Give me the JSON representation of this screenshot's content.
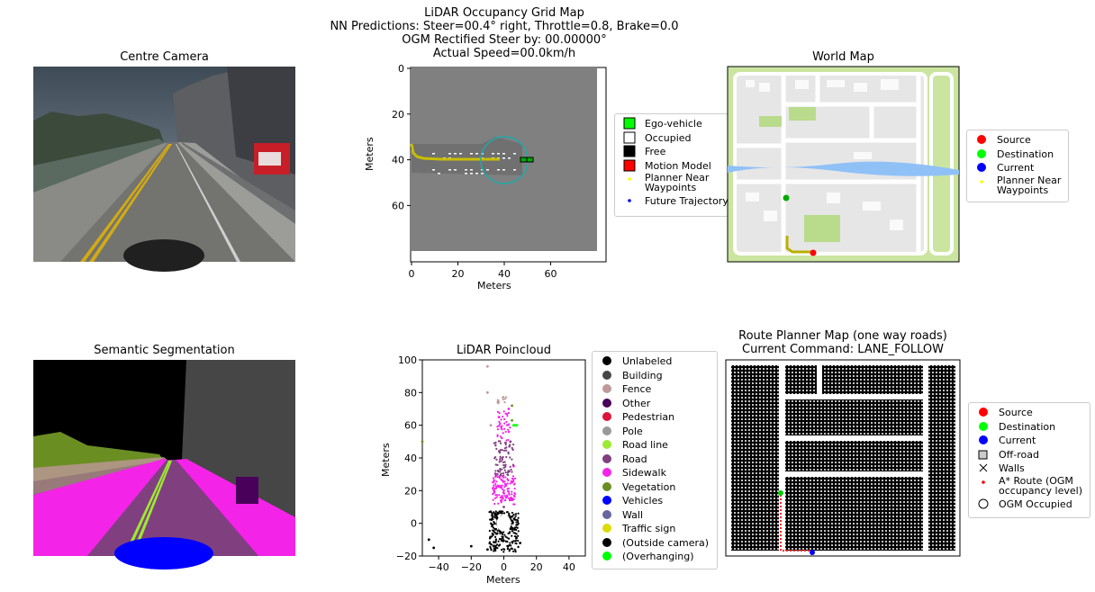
{
  "suptitle": {
    "line1": "LiDAR Occupancy Grid Map",
    "line2": "NN Predictions: Steer=00.4° right, Throttle=0.8, Brake=0.0",
    "line3": "OGM Rectified Steer by: 00.00000°",
    "line4": "Actual Speed=00.0km/h"
  },
  "camera": {
    "title": "Centre Camera"
  },
  "ogm": {
    "xlabel": "Meters",
    "ylabel": "Meters",
    "xticks": [
      "0",
      "20",
      "40",
      "60"
    ],
    "yticks": [
      "0",
      "20",
      "40",
      "60"
    ],
    "legend": [
      {
        "label": "Ego-vehicle",
        "marker": "square",
        "color": "#00ff00"
      },
      {
        "label": "Occupied",
        "marker": "square",
        "color": "#ffffff"
      },
      {
        "label": "Free",
        "marker": "square",
        "color": "#000000"
      },
      {
        "label": "Motion Model",
        "marker": "square",
        "color": "#ff0000"
      },
      {
        "label": "Planner Near\nWaypoints",
        "marker": "dot",
        "color": "#ffff00"
      },
      {
        "label": "Future Trajectory",
        "marker": "dot",
        "color": "#0000ff"
      }
    ]
  },
  "worldmap": {
    "title": "World Map",
    "legend": [
      {
        "label": "Source",
        "marker": "circle",
        "color": "#ff0000"
      },
      {
        "label": "Destination",
        "marker": "circle",
        "color": "#00ff00"
      },
      {
        "label": "Current",
        "marker": "circle",
        "color": "#0000ff"
      },
      {
        "label": "Planner Near\nWaypoints",
        "marker": "dot",
        "color": "#ffff00"
      }
    ]
  },
  "segmentation": {
    "title": "Semantic Segmentation"
  },
  "lidar": {
    "title": "LiDAR Poincloud",
    "xlabel": "Meters",
    "ylabel": "Meters",
    "xticks": [
      "−40",
      "−20",
      "0",
      "20",
      "40"
    ],
    "yticks": [
      "100",
      "80",
      "60",
      "40",
      "20",
      "0",
      "−20"
    ],
    "legend": [
      {
        "label": "Unlabeled",
        "marker": "circle",
        "color": "#000000"
      },
      {
        "label": "Building",
        "marker": "circle",
        "color": "#464646"
      },
      {
        "label": "Fence",
        "marker": "circle",
        "color": "#be9999"
      },
      {
        "label": "Other",
        "marker": "circle",
        "color": "#48005a"
      },
      {
        "label": "Pedestrian",
        "marker": "circle",
        "color": "#dc143c"
      },
      {
        "label": "Pole",
        "marker": "circle",
        "color": "#999999"
      },
      {
        "label": "Road line",
        "marker": "circle",
        "color": "#9dea32"
      },
      {
        "label": "Road",
        "marker": "circle",
        "color": "#804080"
      },
      {
        "label": "Sidewalk",
        "marker": "circle",
        "color": "#f423e8"
      },
      {
        "label": "Vegetation",
        "marker": "circle",
        "color": "#6b8e23"
      },
      {
        "label": "Vehicles",
        "marker": "circle",
        "color": "#0000ff"
      },
      {
        "label": "Wall",
        "marker": "circle",
        "color": "#66669c"
      },
      {
        "label": "Traffic sign",
        "marker": "circle",
        "color": "#dcdc00"
      },
      {
        "label": "(Outside camera)",
        "marker": "circle",
        "color": "#000000"
      },
      {
        "label": "(Overhanging)",
        "marker": "circle",
        "color": "#00ff00"
      }
    ]
  },
  "routeplanner": {
    "title_line1": "Route Planner Map (one way roads)",
    "title_line2": "Current Command: LANE_FOLLOW",
    "legend": [
      {
        "label": "Source",
        "marker": "circle",
        "color": "#ff0000"
      },
      {
        "label": "Destination",
        "marker": "circle",
        "color": "#00ff00"
      },
      {
        "label": "Current",
        "marker": "circle",
        "color": "#0000ff"
      },
      {
        "label": "Off-road",
        "marker": "square-outline",
        "color": "#000000"
      },
      {
        "label": "Walls",
        "marker": "x",
        "color": "#000000"
      },
      {
        "label": "A* Route (OGM\noccupancy level)",
        "marker": "dot",
        "color": "#ff0000"
      },
      {
        "label": "OGM Occupied",
        "marker": "circle-outline",
        "color": "#000000"
      }
    ]
  },
  "chart_data": [
    {
      "type": "heatmap",
      "name": "LiDAR Occupancy Grid Map",
      "xlabel": "Meters",
      "ylabel": "Meters",
      "xlim": [
        0,
        80
      ],
      "ylim": [
        80,
        0
      ],
      "ego_vehicle": {
        "x": 50,
        "y": 40
      },
      "planner_waypoints": {
        "x": [
          0,
          2,
          5,
          10,
          20,
          30,
          38
        ],
        "y": [
          33,
          37,
          39,
          39.5,
          40,
          40,
          40
        ]
      }
    },
    {
      "type": "scatter",
      "name": "LiDAR Poincloud",
      "xlabel": "Meters",
      "ylabel": "Meters",
      "xlim": [
        -50,
        50
      ],
      "ylim": [
        -20,
        100
      ],
      "series": [
        {
          "name": "Unlabeled",
          "x": [
            -46,
            -43,
            -20,
            -10,
            10
          ],
          "y": [
            -10,
            -15,
            -14,
            -16,
            -12
          ]
        },
        {
          "name": "Road",
          "x": [
            -5,
            0,
            5,
            -4,
            4
          ],
          "y": [
            5,
            10,
            15,
            30,
            50
          ]
        },
        {
          "name": "Sidewalk",
          "x": [
            -6,
            -5,
            5,
            6,
            -3,
            3
          ],
          "y": [
            20,
            30,
            25,
            35,
            65,
            70
          ]
        },
        {
          "name": "Fence",
          "x": [
            -10,
            -10,
            -8
          ],
          "y": [
            80,
            96,
            60
          ]
        },
        {
          "name": "Vegetation",
          "x": [
            -50,
            5,
            5
          ],
          "y": [
            50,
            72,
            63
          ]
        },
        {
          "name": "(Overhanging)",
          "x": [
            6,
            7,
            8
          ],
          "y": [
            60,
            60,
            60
          ]
        }
      ]
    }
  ]
}
